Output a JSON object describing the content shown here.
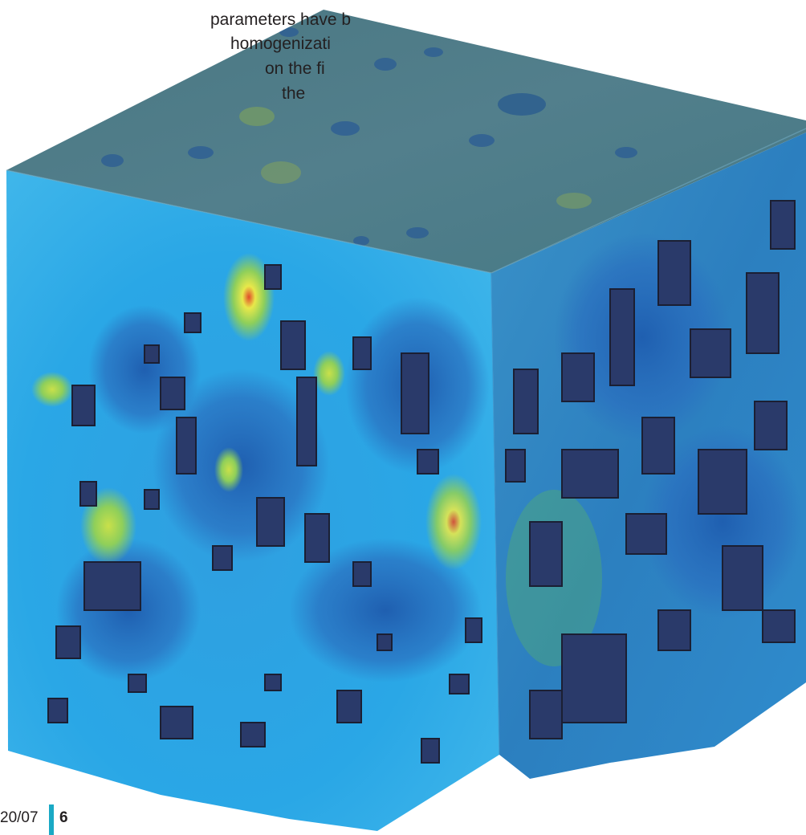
{
  "caption": {
    "lines": [
      "",
      "parameters have b",
      "homogenizati",
      "on the fi",
      "the"
    ]
  },
  "figure": {
    "colors": {
      "front_base": "#27a9e3",
      "front_light": "#4cc3ef",
      "side_base": "#2b8fc9",
      "top_base": "#4f7f8a",
      "inclusion_dark": "#2a3a6a",
      "inclusion_outline": "#1b1f33",
      "hotspot_green": "#8fcf5a",
      "hotspot_yellow": "#e8e84a",
      "hotspot_red": "#e14a2a"
    }
  },
  "footer": {
    "date": "20/07",
    "page_number": "6",
    "accent_color": "#1aa9c5"
  }
}
